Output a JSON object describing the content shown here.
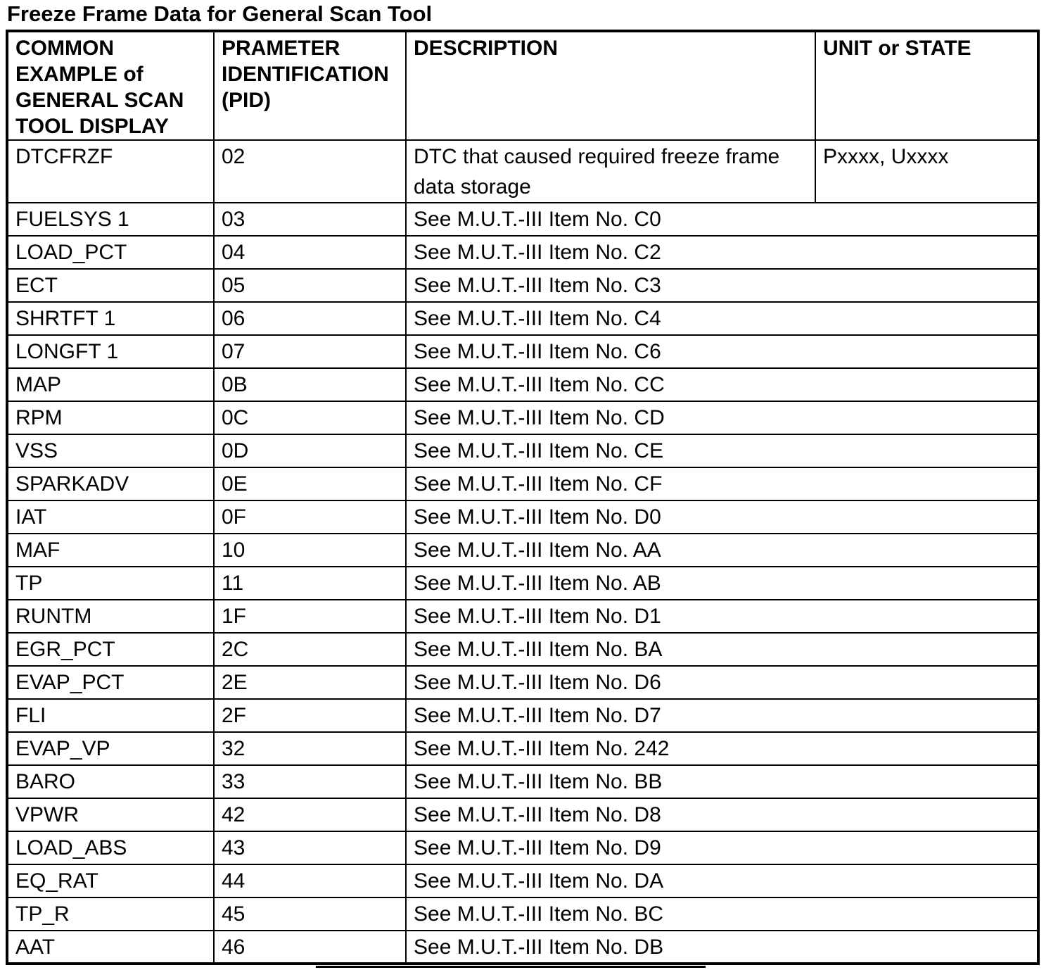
{
  "title": "Freeze Frame Data for General Scan Tool",
  "colors": {
    "text": "#000000",
    "background": "#ffffff",
    "border": "#000000"
  },
  "table": {
    "headers": [
      "COMMON EXAMPLE of GENERAL SCAN TOOL DISPLAY",
      "PRAMETER IDENTIFICATION (PID)",
      "DESCRIPTION",
      "UNIT or STATE"
    ],
    "rows": [
      {
        "display": "DTCFRZF",
        "pid": "02",
        "description": "DTC that caused required freeze frame data storage",
        "unit": "Pxxxx, Uxxxx"
      },
      {
        "display": "FUELSYS 1",
        "pid": "03",
        "description": "See M.U.T.-III Item No. C0",
        "unit": null
      },
      {
        "display": "LOAD_PCT",
        "pid": "04",
        "description": "See M.U.T.-III Item No. C2",
        "unit": null
      },
      {
        "display": "ECT",
        "pid": "05",
        "description": "See M.U.T.-III Item No. C3",
        "unit": null
      },
      {
        "display": "SHRTFT 1",
        "pid": "06",
        "description": "See M.U.T.-III Item No. C4",
        "unit": null
      },
      {
        "display": "LONGFT 1",
        "pid": "07",
        "description": "See M.U.T.-III Item No. C6",
        "unit": null
      },
      {
        "display": "MAP",
        "pid": "0B",
        "description": "See M.U.T.-III Item No. CC",
        "unit": null
      },
      {
        "display": "RPM",
        "pid": "0C",
        "description": "See M.U.T.-III Item No. CD",
        "unit": null
      },
      {
        "display": "VSS",
        "pid": "0D",
        "description": "See M.U.T.-III Item No. CE",
        "unit": null
      },
      {
        "display": "SPARKADV",
        "pid": "0E",
        "description": "See M.U.T.-III Item No. CF",
        "unit": null
      },
      {
        "display": "IAT",
        "pid": "0F",
        "description": "See M.U.T.-III Item No. D0",
        "unit": null
      },
      {
        "display": "MAF",
        "pid": "10",
        "description": "See M.U.T.-III Item No. AA",
        "unit": null
      },
      {
        "display": "TP",
        "pid": "11",
        "description": "See M.U.T.-III Item No. AB",
        "unit": null
      },
      {
        "display": "RUNTM",
        "pid": "1F",
        "description": "See M.U.T.-III Item No. D1",
        "unit": null
      },
      {
        "display": "EGR_PCT",
        "pid": "2C",
        "description": "See M.U.T.-III Item No. BA",
        "unit": null
      },
      {
        "display": "EVAP_PCT",
        "pid": "2E",
        "description": "See M.U.T.-III Item No. D6",
        "unit": null
      },
      {
        "display": "FLI",
        "pid": "2F",
        "description": "See M.U.T.-III Item No. D7",
        "unit": null
      },
      {
        "display": "EVAP_VP",
        "pid": "32",
        "description": "See M.U.T.-III Item No. 242",
        "unit": null
      },
      {
        "display": "BARO",
        "pid": "33",
        "description": "See M.U.T.-III Item No. BB",
        "unit": null
      },
      {
        "display": "VPWR",
        "pid": "42",
        "description": "See M.U.T.-III Item No. D8",
        "unit": null
      },
      {
        "display": "LOAD_ABS",
        "pid": "43",
        "description": "See M.U.T.-III Item No. D9",
        "unit": null
      },
      {
        "display": "EQ_RAT",
        "pid": "44",
        "description": "See M.U.T.-III Item No. DA",
        "unit": null
      },
      {
        "display": "TP_R",
        "pid": "45",
        "description": "See M.U.T.-III Item No. BC",
        "unit": null
      },
      {
        "display": "AAT",
        "pid": "46",
        "description": "See M.U.T.-III Item No. DB",
        "unit": null
      }
    ]
  }
}
